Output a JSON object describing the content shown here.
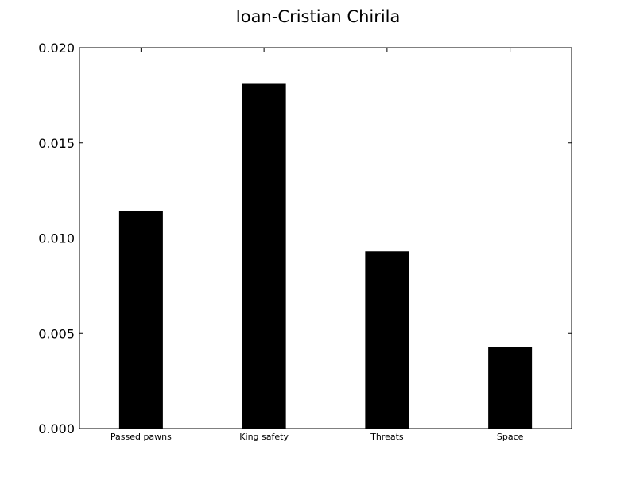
{
  "chart_data": {
    "type": "bar",
    "title": "Ioan-Cristian Chirila",
    "xlabel": "",
    "ylabel": "",
    "categories": [
      "Passed pawns",
      "King safety",
      "Threats",
      "Space"
    ],
    "values": [
      0.0114,
      0.0181,
      0.0093,
      0.0043
    ],
    "ylim": [
      0,
      0.02
    ],
    "yticks": [
      "0.000",
      "0.005",
      "0.010",
      "0.015",
      "0.020"
    ],
    "ytick_values": [
      0,
      0.005,
      0.01,
      0.015,
      0.02
    ],
    "grid": false,
    "bar_color": "#000000"
  }
}
